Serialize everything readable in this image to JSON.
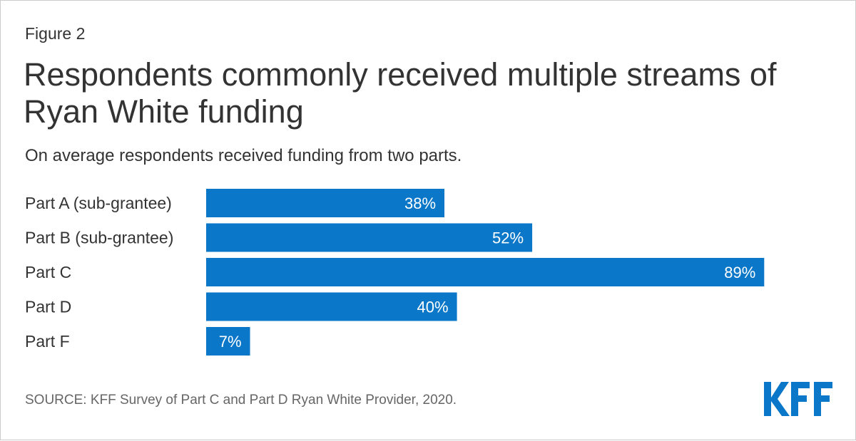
{
  "figure_label": "Figure 2",
  "title": "Respondents commonly received multiple streams of Ryan White funding",
  "subtitle": "On average respondents received funding from two parts.",
  "source": "SOURCE: KFF Survey of Part C and Part D Ryan White Provider, 2020.",
  "logo_text": "KFF",
  "colors": {
    "bar": "#0a77c8",
    "bar_label": "#ffffff",
    "category_text": "#333333",
    "logo": "#0a77c8"
  },
  "chart_data": {
    "type": "bar",
    "orientation": "horizontal",
    "categories": [
      "Part A (sub-grantee)",
      "Part B (sub-grantee)",
      "Part C",
      "Part D",
      "Part F"
    ],
    "values": [
      38,
      52,
      89,
      40,
      7
    ],
    "value_labels": [
      "38%",
      "52%",
      "89%",
      "40%",
      "7%"
    ],
    "unit": "%",
    "xlim": [
      0,
      100
    ],
    "grid": false,
    "legend": "none"
  }
}
